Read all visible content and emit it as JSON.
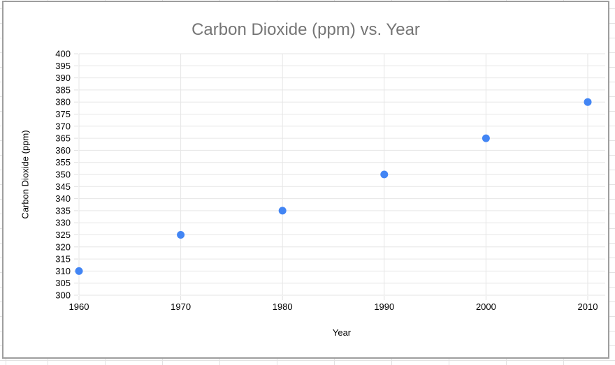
{
  "chart_data": {
    "type": "scatter",
    "title": "Carbon Dioxide (ppm) vs. Year",
    "xlabel": "Year",
    "ylabel": "Carbon Dioxide (ppm)",
    "x": [
      1960,
      1970,
      1980,
      1990,
      2000,
      2010
    ],
    "y": [
      310,
      325,
      335,
      350,
      365,
      380
    ],
    "xlim": [
      1960,
      2010
    ],
    "ylim": [
      300,
      400
    ],
    "ytick_step": 5,
    "xtick_step": 10,
    "grid": true,
    "legend_position": "none",
    "point_color": "#4285f4",
    "gridline_color": "#e6e6e6",
    "tick_mark_color": "#e0e0e0",
    "tick_label_color": "#000000",
    "title_color": "#757575",
    "chart_border_color": "#9e9e9e",
    "background_color": "#ffffff"
  }
}
